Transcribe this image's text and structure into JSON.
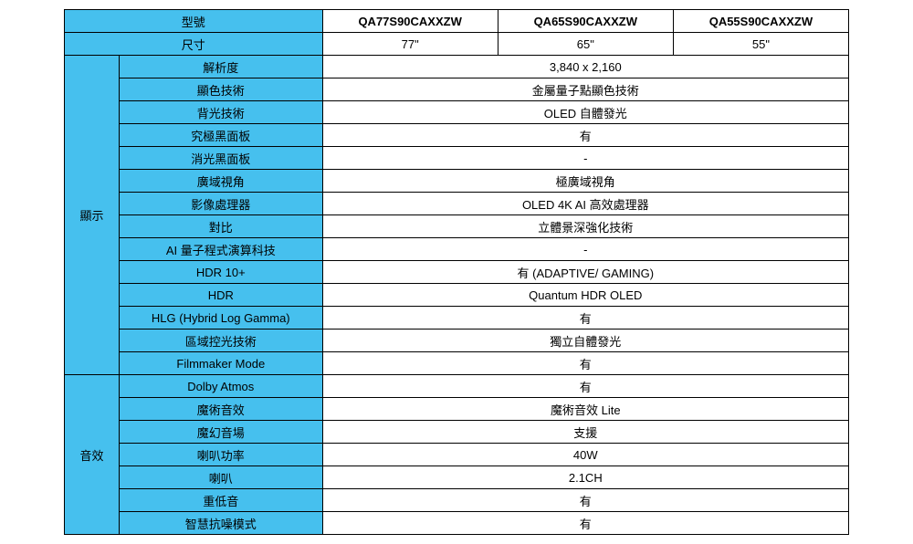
{
  "colors": {
    "header_bg": "#46c0ee",
    "border": "#000000",
    "cell_bg": "#ffffff"
  },
  "header": {
    "model_label": "型號",
    "models": [
      "QA77S90CAXXZW",
      "QA65S90CAXXZW",
      "QA55S90CAXXZW"
    ],
    "size_label": "尺寸",
    "sizes": [
      "77\"",
      "65\"",
      "55\""
    ]
  },
  "sections": [
    {
      "category": "顯示",
      "rows": [
        {
          "label": "解析度",
          "value": "3,840 x 2,160"
        },
        {
          "label": "顯色技術",
          "value": "金屬量子點顯色技術"
        },
        {
          "label": "背光技術",
          "value": "OLED 自體發光"
        },
        {
          "label": "究極黑面板",
          "value": "有"
        },
        {
          "label": "消光黑面板",
          "value": "-"
        },
        {
          "label": "廣域視角",
          "value": "極廣域視角"
        },
        {
          "label": "影像處理器",
          "value": "OLED 4K AI 高效處理器"
        },
        {
          "label": "對比",
          "value": "立體景深強化技術"
        },
        {
          "label": "AI 量子程式演算科技",
          "value": "-"
        },
        {
          "label": "HDR 10+",
          "value": "有 (ADAPTIVE/ GAMING)"
        },
        {
          "label": "HDR",
          "value": "Quantum HDR OLED"
        },
        {
          "label": "HLG (Hybrid Log Gamma)",
          "value": "有"
        },
        {
          "label": "區域控光技術",
          "value": "獨立自體發光"
        },
        {
          "label": "Filmmaker Mode",
          "value": "有"
        }
      ]
    },
    {
      "category": "音效",
      "rows": [
        {
          "label": "Dolby Atmos",
          "value": "有"
        },
        {
          "label": "魔術音效",
          "value": "魔術音效 Lite"
        },
        {
          "label": "魔幻音場",
          "value": "支援"
        },
        {
          "label": "喇叭功率",
          "value": "40W"
        },
        {
          "label": "喇叭",
          "value": "2.1CH"
        },
        {
          "label": "重低音",
          "value": "有"
        },
        {
          "label": "智慧抗噪模式",
          "value": "有"
        }
      ]
    }
  ]
}
